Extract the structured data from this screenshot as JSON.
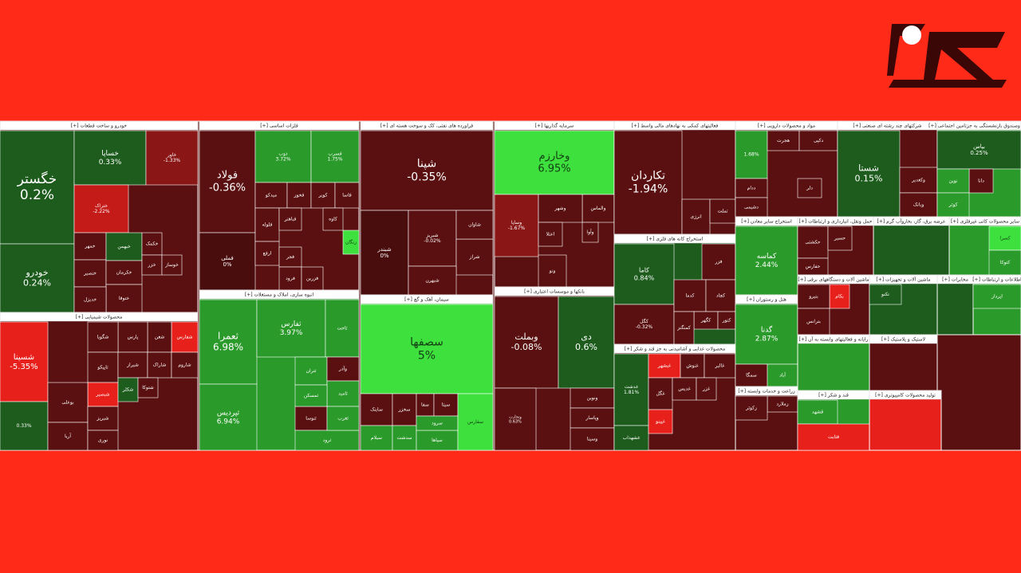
{
  "chart_data": {
    "type": "treemap",
    "sectors": [
      {
        "name": "[+] خودرو و ساخت قطعات",
        "color": "#5a1010",
        "tiles": [
          {
            "name": "خگستر",
            "value": 0.2,
            "value_label": "0.2%",
            "color": "#1d5c1d"
          },
          {
            "name": "خودرو",
            "value": 0.24,
            "value_label": "0.24%",
            "color": "#1d5c1d"
          },
          {
            "name": "خساپا",
            "value": 0.33,
            "value_label": "0.33%",
            "color": "#1d5c1d"
          },
          {
            "name": "خاور",
            "value": -1.33,
            "value_label": "-1.33%",
            "color": "#8a1616"
          },
          {
            "name": "ختراک",
            "value": -2.22,
            "value_label": "-2.22%",
            "color": "#c41a18"
          },
          {
            "name": "خمهر",
            "color": "#5a1010"
          },
          {
            "name": "خنصیر",
            "color": "#5a1010"
          },
          {
            "name": "خبهمن",
            "color": "#1d5c1d"
          },
          {
            "name": "خکرمان",
            "color": "#5a1010"
          },
          {
            "name": "ختوقا",
            "color": "#5a1010"
          },
          {
            "name": "خکمک",
            "color": "#5a1010"
          },
          {
            "name": "خزر",
            "color": "#5a1010"
          },
          {
            "name": "خدیزل",
            "color": "#5a1010"
          },
          {
            "name": "خوساز",
            "color": "#5a1010"
          }
        ]
      },
      {
        "name": "[+] محصولات شیمیایی",
        "color": "#5a1010",
        "tiles": [
          {
            "name": "شسینا",
            "value": -5.35,
            "value_label": "-5.35%",
            "color": "#e8201c"
          },
          {
            "value": 0.33,
            "value_label": "0.33%",
            "color": "#1d5c1d"
          },
          {
            "name": "شفارس",
            "color": "#e8201c"
          },
          {
            "name": "شغن",
            "color": "#5a1010"
          },
          {
            "name": "پارس",
            "color": "#5a1010"
          },
          {
            "name": "شگویا",
            "color": "#5a1010"
          },
          {
            "name": "تاپیکو",
            "color": "#5a1010"
          },
          {
            "name": "شیراز",
            "color": "#5a1010"
          },
          {
            "name": "شاراک",
            "color": "#5a1010"
          },
          {
            "name": "شاروم",
            "color": "#5a1010"
          },
          {
            "name": "شبصیر",
            "color": "#e8201c"
          },
          {
            "name": "بوعلی",
            "color": "#5a1010"
          },
          {
            "name": "آریا",
            "color": "#5a1010"
          },
          {
            "name": "شبریز",
            "color": "#5a1010"
          },
          {
            "name": "نوری",
            "color": "#5a1010"
          },
          {
            "name": "شکلر",
            "color": "#1d5c1d"
          },
          {
            "name": "شتوکا",
            "color": "#5a1010"
          }
        ]
      },
      {
        "name": "[+] فلزات اساسی",
        "color": "#5a1010",
        "tiles": [
          {
            "name": "فولاد",
            "value": -0.36,
            "value_label": "-0.36%",
            "color": "#5a1010"
          },
          {
            "name": "فملی",
            "value": 0,
            "value_label": "0%",
            "color": "#4a0d0d"
          },
          {
            "name": "ذوب",
            "value": 3.72,
            "value_label": "3.72%",
            "color": "#2a9a2a"
          },
          {
            "name": "فسرب",
            "value": 1.75,
            "value_label": "1.75%",
            "color": "#2a9a2a"
          },
          {
            "name": "میدکو",
            "color": "#5a1010"
          },
          {
            "name": "فخوز",
            "color": "#5a1010"
          },
          {
            "name": "کویر",
            "color": "#5a1010"
          },
          {
            "name": "فاسا",
            "color": "#5a1010"
          },
          {
            "name": "فلوله",
            "color": "#5a1010"
          },
          {
            "name": "فباهنر",
            "color": "#5a1010"
          },
          {
            "name": "کاوه",
            "color": "#5a1010"
          },
          {
            "name": "ارفع",
            "color": "#5a1010"
          },
          {
            "name": "فجر",
            "color": "#5a1010"
          },
          {
            "name": "فرود",
            "color": "#5a1010"
          },
          {
            "name": "فزرین",
            "color": "#5a1010"
          },
          {
            "name": "زنگان",
            "color": "#3ee03e"
          }
        ]
      },
      {
        "name": "[+] انبوه سازی، املاک و مستغلات",
        "color": "#2a9a2a",
        "tiles": [
          {
            "name": "ثعمرا",
            "value": 6.98,
            "value_label": "6.98%",
            "color": "#2a9a2a"
          },
          {
            "name": "ثپردیس",
            "value": 6.94,
            "value_label": "6.94%",
            "color": "#2a9a2a"
          },
          {
            "name": "ثفارس",
            "value": 3.97,
            "value_label": "3.97%",
            "color": "#2a9a2a"
          },
          {
            "name": "ثاخت",
            "color": "#2a9a2a"
          },
          {
            "name": "ثنوسا",
            "color": "#5a1010"
          },
          {
            "name": "ثتران",
            "color": "#2a9a2a"
          },
          {
            "name": "وآذر",
            "color": "#5a1010"
          },
          {
            "name": "ثامید",
            "color": "#2a9a2a"
          },
          {
            "name": "ثمسکن",
            "color": "#2a9a2a"
          },
          {
            "name": "ثرود",
            "color": "#2a9a2a"
          },
          {
            "name": "ثغرب",
            "color": "#2a9a2a"
          }
        ]
      },
      {
        "name": "[+] فراورده های نفتی، کک و سوخت هسته ای",
        "color": "#5a1010",
        "tiles": [
          {
            "name": "شپنا",
            "value": -0.35,
            "value_label": "-0.35%",
            "color": "#5a1010"
          },
          {
            "name": "شبندر",
            "value": 0,
            "value_label": "0%",
            "color": "#4a0d0d"
          },
          {
            "name": "شبریز",
            "value": -0.02,
            "value_label": "-0.02%",
            "color": "#5a1010"
          },
          {
            "name": "شراز",
            "color": "#5a1010"
          },
          {
            "name": "شاوان",
            "color": "#5a1010"
          },
          {
            "name": "شبهرن",
            "color": "#5a1010"
          }
        ]
      },
      {
        "name": "[+] سیمان، آهک و گچ",
        "color": "#3ee03e",
        "tiles": [
          {
            "name": "سصفها",
            "value": 5,
            "value_label": "5%",
            "color": "#3ee03e"
          },
          {
            "name": "ساینک",
            "color": "#5a1010"
          },
          {
            "name": "سخزر",
            "color": "#5a1010"
          },
          {
            "name": "سفا",
            "color": "#5a1010"
          },
          {
            "name": "سیتا",
            "color": "#5a1010"
          },
          {
            "name": "سیلام",
            "color": "#2a9a2a"
          },
          {
            "name": "سدشت",
            "color": "#2a9a2a"
          },
          {
            "name": "سپاها",
            "color": "#2a9a2a"
          },
          {
            "name": "سرود",
            "color": "#2a9a2a"
          },
          {
            "name": "سفارس",
            "color": "#3ee03e"
          }
        ]
      },
      {
        "name": "[+] سرمایه گذاریها",
        "color": "#5a1010",
        "tiles": [
          {
            "name": "وخارزم",
            "value": 6.95,
            "value_label": "6.95%",
            "color": "#3ee03e"
          },
          {
            "name": "وساپا",
            "value": -1.67,
            "value_label": "-1.67%",
            "color": "#8a1616"
          },
          {
            "name": "والماس",
            "color": "#5a1010"
          },
          {
            "name": "وشهر",
            "color": "#5a1010"
          },
          {
            "name": "وآوا",
            "color": "#5a1010"
          },
          {
            "name": "اعتلا",
            "color": "#5a1010"
          },
          {
            "name": "ونو",
            "color": "#5a1010"
          }
        ]
      },
      {
        "name": "[+] بانکها و موسسات اعتباری",
        "color": "#5a1010",
        "tiles": [
          {
            "name": "وبملت",
            "value": -0.08,
            "value_label": "-0.08%",
            "color": "#5a1010"
          },
          {
            "name": "دی",
            "value": 0.6,
            "value_label": "0.6%",
            "color": "#1d5c1d"
          },
          {
            "name": "وتجارت",
            "value": 0.63,
            "value_label": "0.63%",
            "color": "#5a1010"
          },
          {
            "name": "ونوین",
            "color": "#5a1010"
          },
          {
            "name": "وپاسار",
            "color": "#5a1010"
          },
          {
            "name": "وسینا",
            "color": "#5a1010"
          }
        ]
      },
      {
        "name": "[+] فعالیتهای کمکی به نهادهای مالی واسط",
        "color": "#5a1010",
        "tiles": [
          {
            "name": "تکاردان",
            "value": -1.94,
            "value_label": "-1.94%",
            "color": "#5a1010"
          },
          {
            "name": "انرژی",
            "color": "#5a1010"
          },
          {
            "name": "تملت",
            "color": "#5a1010"
          }
        ]
      },
      {
        "name": "[+] استخراج کانه های فلزی",
        "color": "#1d5c1d",
        "tiles": [
          {
            "name": "کاما",
            "value": 0.84,
            "value_label": "0.84%",
            "color": "#1d5c1d"
          },
          {
            "name": "کگل",
            "value": -0.32,
            "value_label": "-0.32%",
            "color": "#5a1010"
          },
          {
            "name": "فزر",
            "color": "#5a1010"
          },
          {
            "name": "کدما",
            "color": "#5a1010"
          },
          {
            "name": "کچاد",
            "color": "#5a1010"
          },
          {
            "name": "کگهر",
            "color": "#5a1010"
          },
          {
            "name": "کنور",
            "color": "#5a1010"
          },
          {
            "name": "کمنگنز",
            "color": "#5a1010"
          }
        ]
      },
      {
        "name": "[+] محصولات غذایی و آشامیدنی به جز قند و شکر",
        "color": "#5a1010",
        "tiles": [
          {
            "name": "غدشت",
            "value": 1.81,
            "value_label": "1.81%",
            "color": "#1d5c1d"
          },
          {
            "name": "غشهداب",
            "color": "#1d5c1d"
          },
          {
            "name": "غبشهر",
            "color": "#e8201c"
          },
          {
            "name": "غنوش",
            "color": "#5a1010"
          },
          {
            "name": "غالبر",
            "color": "#5a1010"
          },
          {
            "name": "غگل",
            "color": "#5a1010"
          },
          {
            "name": "غدیس",
            "color": "#5a1010"
          },
          {
            "name": "غپینو",
            "color": "#e8201c"
          },
          {
            "name": "غزر",
            "color": "#5a1010"
          }
        ]
      },
      {
        "name": "[+] مواد و محصولات دارویی",
        "color": "#5a1010",
        "tiles": [
          {
            "value": 1.68,
            "value_label": "1.68%",
            "color": "#2a9a2a"
          },
          {
            "name": "هجرت",
            "color": "#5a1010"
          },
          {
            "name": "دکپی",
            "color": "#5a1010"
          },
          {
            "name": "ددام",
            "color": "#5a1010"
          },
          {
            "name": "دشیمی",
            "color": "#5a1010"
          },
          {
            "name": "دلر",
            "color": "#5a1010"
          }
        ]
      },
      {
        "name": "[+] استخراج سایر معادن",
        "color": "#2a9a2a",
        "tiles": [
          {
            "name": "کماسه",
            "value": 2.44,
            "value_label": "2.44%",
            "color": "#2a9a2a"
          }
        ]
      },
      {
        "name": "[+] هتل و رستوران",
        "color": "#2a9a2a",
        "tiles": [
          {
            "name": "گدنا",
            "value": 2.87,
            "value_label": "2.87%",
            "color": "#2a9a2a"
          },
          {
            "name": "سمگا",
            "color": "#5a1010"
          },
          {
            "name": "آباد",
            "color": "#2a9a2a"
          }
        ]
      },
      {
        "name": "[+] زراعت و خدمات وابسته",
        "color": "#5a1010",
        "tiles": [
          {
            "name": "زملارد",
            "color": "#5a1010"
          },
          {
            "name": "زکوثر",
            "color": "#5a1010"
          }
        ]
      },
      {
        "name": "[+] شرکتهای چند رشته ای صنعتی",
        "color": "#5a1010",
        "tiles": [
          {
            "name": "شستا",
            "value": 0.15,
            "value_label": "0.15%",
            "color": "#1d5c1d"
          },
          {
            "name": "وکغدیر",
            "color": "#5a1010"
          },
          {
            "name": "وبانک",
            "color": "#5a1010"
          }
        ]
      },
      {
        "name": "[+] بیمه وصندوق بازنشستگی به جزتامین اجتماعی",
        "color": "#2a9a2a",
        "tiles": [
          {
            "name": "بپاس",
            "value": 0.25,
            "value_label": "0.25%",
            "color": "#1d5c1d"
          },
          {
            "name": "دانا",
            "color": "#5a1010"
          },
          {
            "name": "نوین",
            "color": "#2a9a2a"
          },
          {
            "name": "کوثر",
            "color": "#2a9a2a"
          }
        ]
      },
      {
        "name": "[+] حمل ونقل، انبارداری و ارتباطات",
        "color": "#5a1010",
        "tiles": [
          {
            "name": "حکشتی",
            "color": "#5a1010"
          },
          {
            "name": "حفارس",
            "color": "#5a1010"
          },
          {
            "name": "حسیر",
            "color": "#5a1010"
          }
        ]
      },
      {
        "name": "[+] عرضه برق، گاز، بخاروآب گرم",
        "color": "#1d5c1d",
        "tiles": []
      },
      {
        "name": "[+] سایر محصولات کانی غیرفلزی",
        "color": "#2a9a2a",
        "tiles": [
          {
            "name": "کسرا",
            "color": "#3ee03e"
          },
          {
            "name": "کتوکا",
            "color": "#2a9a2a"
          }
        ]
      },
      {
        "name": "[+] ماشین آلات و دستگاههای برقی",
        "color": "#5a1010",
        "tiles": [
          {
            "name": "بکام",
            "color": "#e8201c"
          },
          {
            "name": "بنیرو",
            "color": "#5a1010"
          },
          {
            "name": "بترانس",
            "color": "#5a1010"
          }
        ]
      },
      {
        "name": "[+] ماشین آلات و تجهیزات",
        "color": "#1d5c1d",
        "tiles": [
          {
            "name": "تکنو",
            "color": "#1d5c1d"
          }
        ]
      },
      {
        "name": "[+] مخابرات",
        "color": "#1d5c1d",
        "tiles": []
      },
      {
        "name": "[+] اطلاعات و ارتباطات",
        "color": "#2a9a2a",
        "tiles": [
          {
            "name": "اپرداز",
            "color": "#2a9a2a"
          }
        ]
      },
      {
        "name": "[+] رایانه و فعالیتهای وابسته به آن",
        "color": "#2a9a2a",
        "tiles": []
      },
      {
        "name": "[+] لاستیک و پلاستیک",
        "color": "#5a1010",
        "tiles": []
      },
      {
        "name": "[+] قند و شکر",
        "color": "#2a9a2a",
        "tiles": [
          {
            "name": "قشهد",
            "color": "#2a9a2a"
          },
          {
            "name": "قثابت",
            "color": "#e8201c"
          }
        ]
      },
      {
        "name": "[+] تولید محصولات کامپیوتری",
        "color": "#e8201c",
        "tiles": []
      }
    ]
  }
}
